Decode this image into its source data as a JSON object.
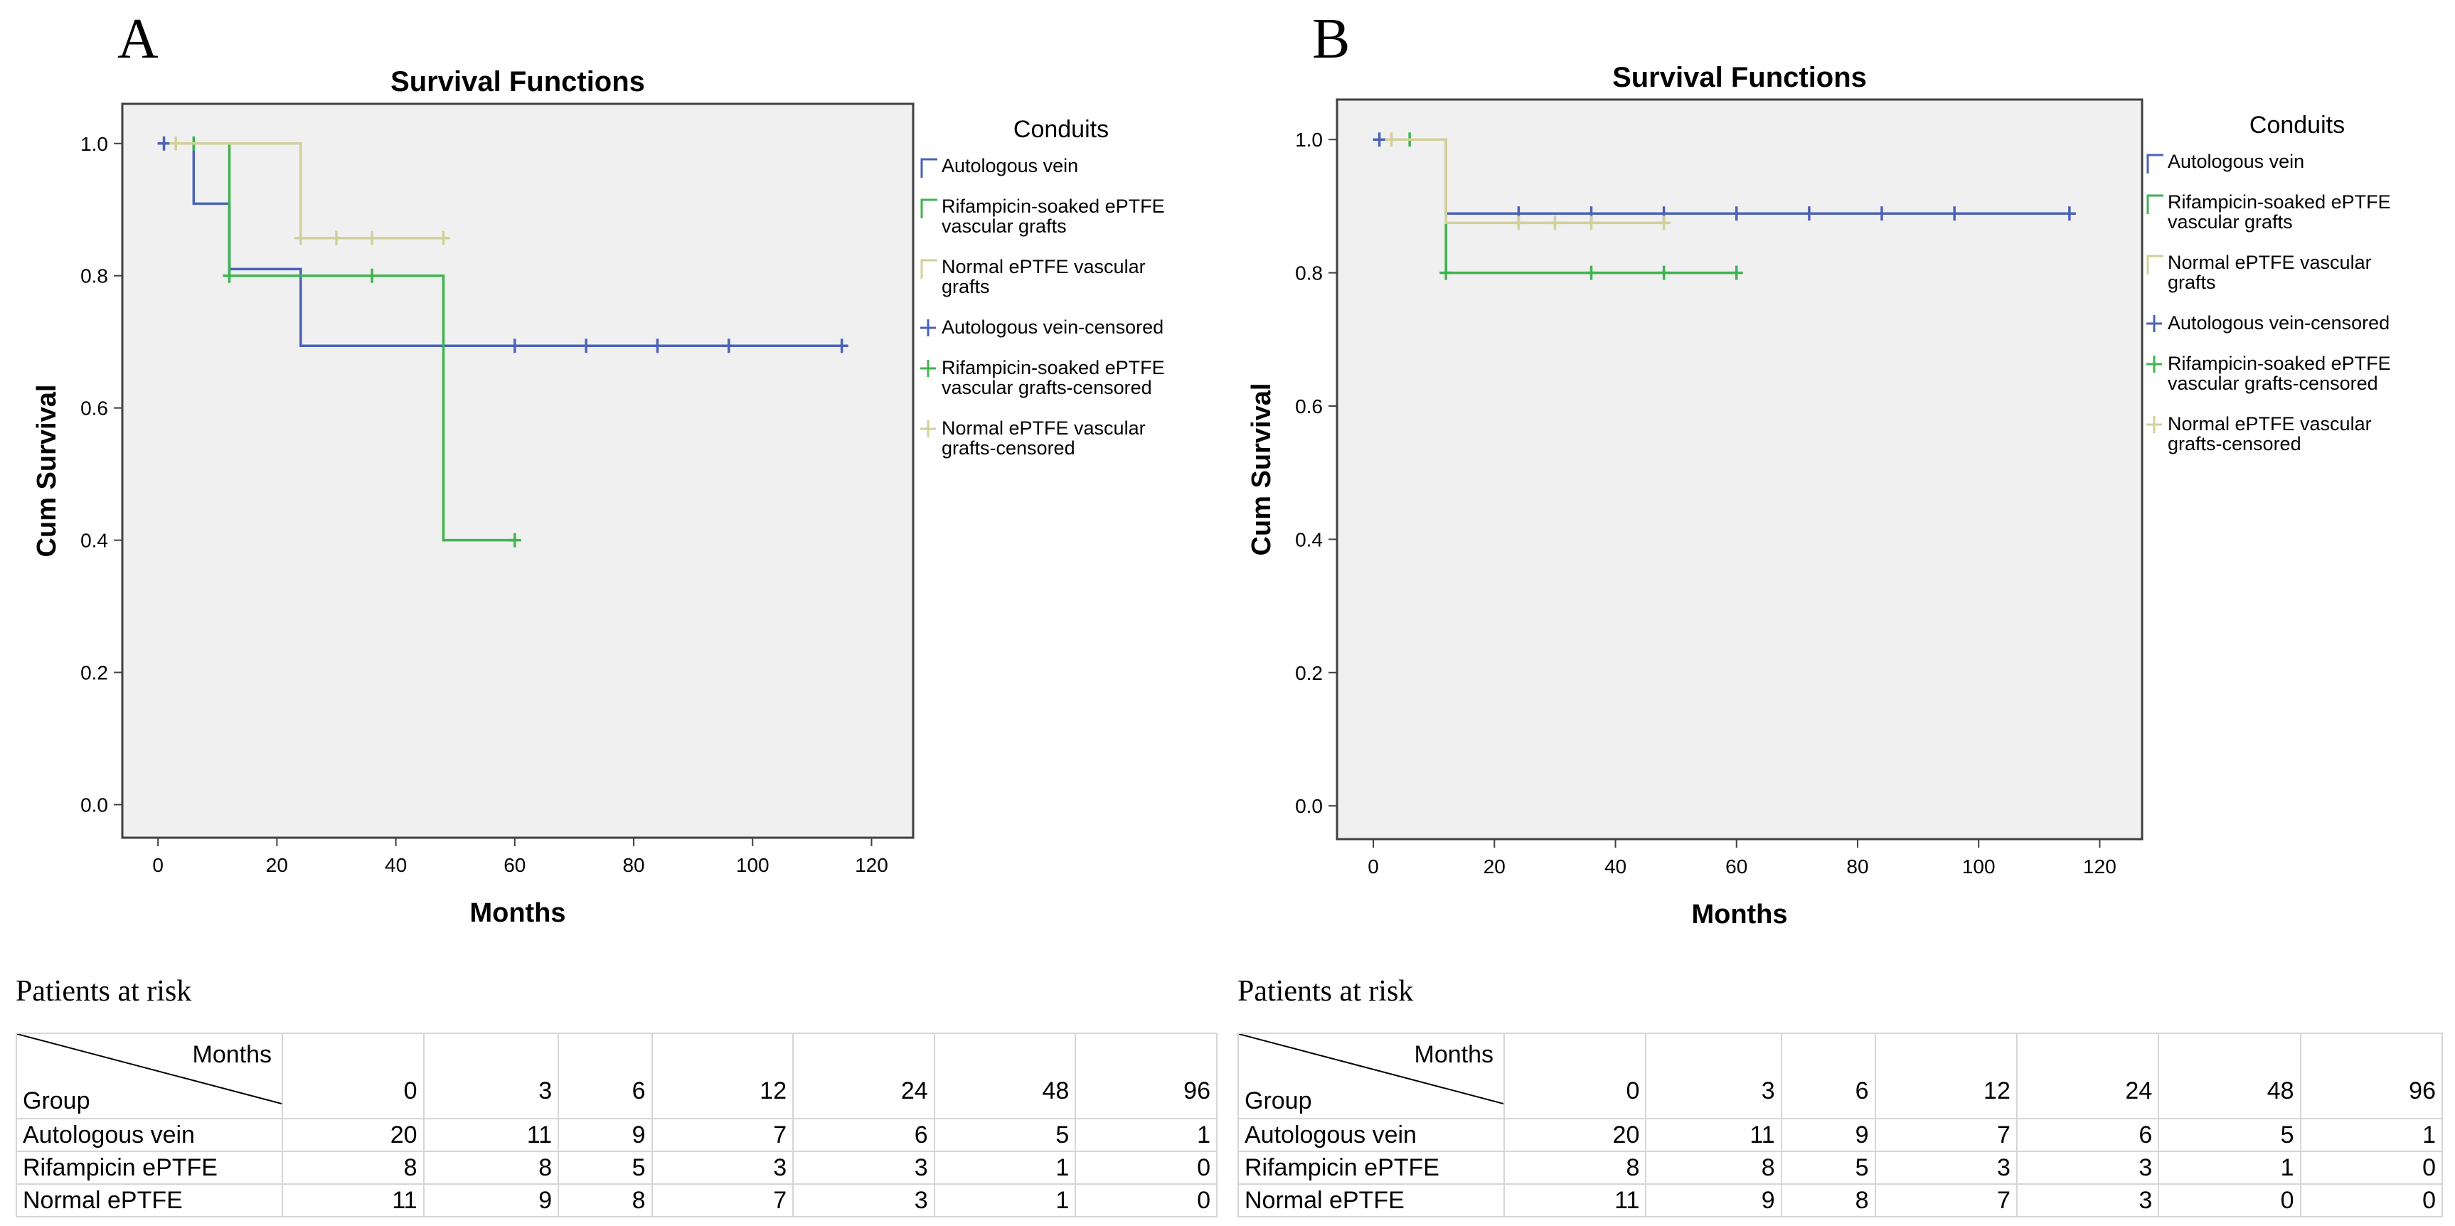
{
  "panels": [
    {
      "letter": "A",
      "chart_data": {
        "type": "line",
        "subtype": "kaplan-meier",
        "title": "Survival Functions",
        "xlabel": "Months",
        "ylabel": "Cum Survival",
        "xlim": [
          -6,
          127
        ],
        "ylim": [
          -0.05,
          1.06
        ],
        "xticks": [
          0,
          20,
          40,
          60,
          80,
          100,
          120
        ],
        "yticks": [
          0.0,
          0.2,
          0.4,
          0.6,
          0.8,
          1.0
        ],
        "ytick_labels": [
          "0.0",
          "0.2",
          "0.4",
          "0.6",
          "0.8",
          "1.0"
        ],
        "legend_title": "Conduits",
        "legend_position": "right",
        "series": [
          {
            "name": "Autologous vein",
            "color": "#4a62b8",
            "steps": [
              [
                1,
                1.0
              ],
              [
                6,
                0.909
              ],
              [
                12,
                0.81
              ],
              [
                24,
                0.694
              ],
              [
                115,
                0.694
              ]
            ],
            "censored": [
              [
                1,
                1.0
              ],
              [
                60,
                0.694
              ],
              [
                72,
                0.694
              ],
              [
                84,
                0.694
              ],
              [
                96,
                0.694
              ],
              [
                115,
                0.694
              ]
            ]
          },
          {
            "name": "Rifampicin-soaked ePTFE vascular grafts",
            "color": "#3fb34f",
            "steps": [
              [
                6,
                1.0
              ],
              [
                12,
                0.8
              ],
              [
                48,
                0.4
              ],
              [
                60,
                0.4
              ]
            ],
            "censored": [
              [
                6,
                1.0
              ],
              [
                12,
                0.8
              ],
              [
                36,
                0.8
              ],
              [
                60,
                0.4
              ]
            ]
          },
          {
            "name": "Normal ePTFE vascular grafts",
            "color": "#d2d09a",
            "steps": [
              [
                3,
                1.0
              ],
              [
                24,
                0.857
              ],
              [
                48,
                0.857
              ]
            ],
            "censored": [
              [
                3,
                1.0
              ],
              [
                24,
                0.857
              ],
              [
                30,
                0.857
              ],
              [
                36,
                0.857
              ],
              [
                48,
                0.857
              ]
            ]
          }
        ],
        "legend_entries": [
          {
            "label": "Autologous vein",
            "color": "#4a62b8",
            "marker": "step"
          },
          {
            "label": "Rifampicin-soaked ePTFE vascular grafts",
            "color": "#3fb34f",
            "marker": "step"
          },
          {
            "label": "Normal ePTFE vascular grafts",
            "color": "#d2d09a",
            "marker": "step"
          },
          {
            "label": "Autologous vein-censored",
            "color": "#4a62b8",
            "marker": "plus"
          },
          {
            "label": "Rifampicin-soaked ePTFE vascular grafts-censored",
            "color": "#3fb34f",
            "marker": "plus"
          },
          {
            "label": "Normal ePTFE vascular grafts-censored",
            "color": "#d2d09a",
            "marker": "plus"
          }
        ]
      },
      "risk_table": {
        "title": "Patients at risk",
        "corner_months": "Months",
        "corner_group": "Group",
        "months": [
          "0",
          "3",
          "6",
          "12",
          "24",
          "48",
          "96"
        ],
        "rows": [
          {
            "group": "Autologous vein",
            "values": [
              "20",
              "11",
              "9",
              "7",
              "6",
              "5",
              "1"
            ]
          },
          {
            "group": "Rifampicin ePTFE",
            "values": [
              "8",
              "8",
              "5",
              "3",
              "3",
              "1",
              "0"
            ]
          },
          {
            "group": "Normal ePTFE",
            "values": [
              "11",
              "9",
              "8",
              "7",
              "3",
              "1",
              "0"
            ]
          }
        ]
      }
    },
    {
      "letter": "B",
      "chart_data": {
        "type": "line",
        "subtype": "kaplan-meier",
        "title": "Survival Functions",
        "xlabel": "Months",
        "ylabel": "Cum Survival",
        "xlim": [
          -6,
          127
        ],
        "ylim": [
          -0.05,
          1.06
        ],
        "xticks": [
          0,
          20,
          40,
          60,
          80,
          100,
          120
        ],
        "yticks": [
          0.0,
          0.2,
          0.4,
          0.6,
          0.8,
          1.0
        ],
        "ytick_labels": [
          "0.0",
          "0.2",
          "0.4",
          "0.6",
          "0.8",
          "1.0"
        ],
        "legend_title": "Conduits",
        "legend_position": "right",
        "series": [
          {
            "name": "Autologous vein",
            "color": "#4a62b8",
            "steps": [
              [
                1,
                1.0
              ],
              [
                12,
                0.889
              ],
              [
                115,
                0.889
              ]
            ],
            "censored": [
              [
                1,
                1.0
              ],
              [
                24,
                0.889
              ],
              [
                36,
                0.889
              ],
              [
                48,
                0.889
              ],
              [
                60,
                0.889
              ],
              [
                72,
                0.889
              ],
              [
                84,
                0.889
              ],
              [
                96,
                0.889
              ],
              [
                115,
                0.889
              ]
            ]
          },
          {
            "name": "Rifampicin-soaked ePTFE vascular grafts",
            "color": "#3fb34f",
            "steps": [
              [
                6,
                1.0
              ],
              [
                12,
                0.8
              ],
              [
                60,
                0.8
              ]
            ],
            "censored": [
              [
                6,
                1.0
              ],
              [
                12,
                0.8
              ],
              [
                36,
                0.8
              ],
              [
                48,
                0.8
              ],
              [
                60,
                0.8
              ]
            ]
          },
          {
            "name": "Normal ePTFE vascular grafts",
            "color": "#d2d09a",
            "steps": [
              [
                3,
                1.0
              ],
              [
                12,
                0.875
              ],
              [
                48,
                0.875
              ]
            ],
            "censored": [
              [
                3,
                1.0
              ],
              [
                24,
                0.875
              ],
              [
                30,
                0.875
              ],
              [
                36,
                0.875
              ],
              [
                48,
                0.875
              ]
            ]
          }
        ],
        "legend_entries": [
          {
            "label": "Autologous vein",
            "color": "#4a62b8",
            "marker": "step"
          },
          {
            "label": "Rifampicin-soaked ePTFE vascular grafts",
            "color": "#3fb34f",
            "marker": "step"
          },
          {
            "label": "Normal ePTFE vascular grafts",
            "color": "#d2d09a",
            "marker": "step"
          },
          {
            "label": "Autologous vein-censored",
            "color": "#4a62b8",
            "marker": "plus"
          },
          {
            "label": "Rifampicin-soaked ePTFE vascular grafts-censored",
            "color": "#3fb34f",
            "marker": "plus"
          },
          {
            "label": "Normal ePTFE vascular grafts-censored",
            "color": "#d2d09a",
            "marker": "plus"
          }
        ]
      },
      "risk_table": {
        "title": "Patients at risk",
        "corner_months": "Months",
        "corner_group": "Group",
        "months": [
          "0",
          "3",
          "6",
          "12",
          "24",
          "48",
          "96"
        ],
        "rows": [
          {
            "group": "Autologous vein",
            "values": [
              "20",
              "11",
              "9",
              "7",
              "6",
              "5",
              "1"
            ]
          },
          {
            "group": "Rifampicin ePTFE",
            "values": [
              "8",
              "8",
              "5",
              "3",
              "3",
              "1",
              "0"
            ]
          },
          {
            "group": "Normal ePTFE",
            "values": [
              "11",
              "9",
              "8",
              "7",
              "3",
              "0",
              "0"
            ]
          }
        ]
      }
    }
  ]
}
